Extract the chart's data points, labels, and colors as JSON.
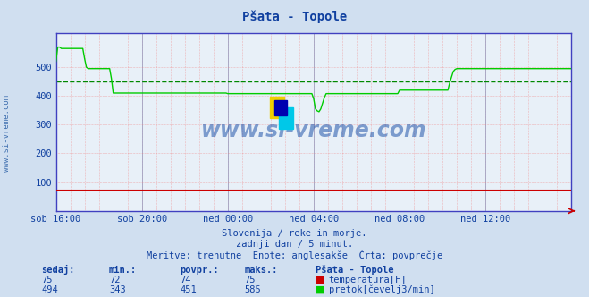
{
  "title": "Pšata - Topole",
  "bg_color": "#d0dff0",
  "plot_bg_color": "#e8f0f8",
  "xlim": [
    0,
    288
  ],
  "ylim": [
    0,
    620
  ],
  "yticks": [
    100,
    200,
    300,
    400,
    500
  ],
  "xtick_labels": [
    "sob 16:00",
    "sob 20:00",
    "ned 00:00",
    "ned 04:00",
    "ned 08:00",
    "ned 12:00"
  ],
  "xtick_positions": [
    0,
    48,
    96,
    144,
    192,
    240
  ],
  "avg_line_value": 451,
  "avg_line_color": "#008800",
  "temp_color": "#cc0000",
  "flow_color": "#00cc00",
  "watermark": "www.si-vreme.com",
  "label_sedaj": "sedaj:",
  "label_min": "min.:",
  "label_povpr": "povpr.:",
  "label_maks": "maks.:",
  "temp_sedaj": 75,
  "temp_min": 72,
  "temp_povpr": 74,
  "temp_maks": 75,
  "flow_sedaj": 494,
  "flow_min": 343,
  "flow_povpr": 451,
  "flow_maks": 585
}
